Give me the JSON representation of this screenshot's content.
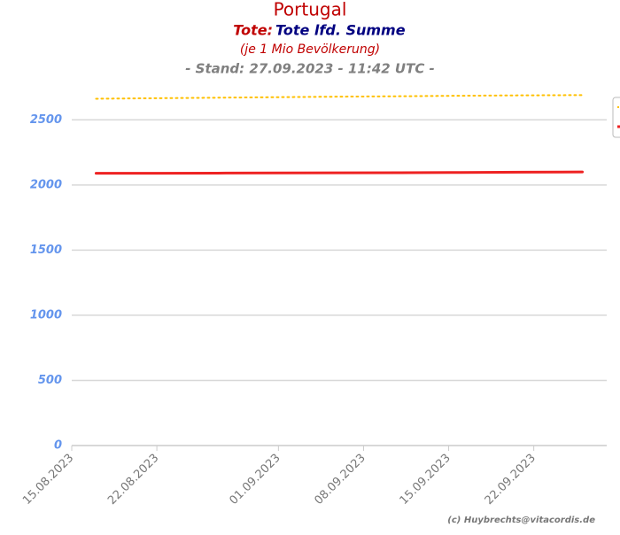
{
  "chart_data": {
    "type": "line",
    "title": "Portugal",
    "subtitle_prefix": "Tote:",
    "subtitle": "Tote lfd. Summe",
    "subtitle2": "(je 1 Mio Bevölkerung)",
    "subtitle3": "- Stand: 27.09.2023 - 11:42 UTC -",
    "credit": "(c) Huybrechts@vitacordis.de",
    "x": [
      "17.08.2023",
      "22.08.2023",
      "27.08.2023",
      "01.09.2023",
      "06.09.2023",
      "11.09.2023",
      "16.09.2023",
      "21.09.2023",
      "26.09.2023"
    ],
    "series": [
      {
        "color": "#ffc000",
        "dash": "dotted",
        "values": [
          2662,
          2666,
          2670,
          2674,
          2678,
          2681,
          2685,
          2688,
          2690
        ]
      },
      {
        "color": "#ee2222",
        "dash": "solid",
        "values": [
          2090,
          2090,
          2091,
          2092,
          2093,
          2094,
          2096,
          2098,
          2100
        ]
      }
    ],
    "xlim": [
      "15.08.2023",
      "28.09.2023"
    ],
    "xticks": [
      "15.08.2023",
      "22.08.2023",
      "01.09.2023",
      "08.09.2023",
      "15.09.2023",
      "22.09.2023"
    ],
    "ylim": [
      0,
      2740
    ],
    "yticks": [
      0,
      500,
      1000,
      1500,
      2000,
      2500
    ],
    "grid": true,
    "legend": "right"
  }
}
